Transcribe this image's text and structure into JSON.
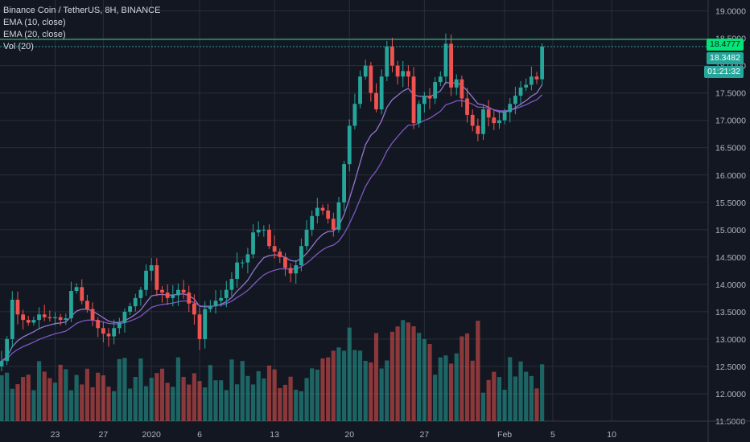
{
  "legend": {
    "symbol": "Binance Coin / TetherUS, 8H, BINANCE",
    "ema10": "EMA (10, close)",
    "ema20": "EMA (20, close)",
    "vol": "Vol (20)"
  },
  "price_badges": {
    "high": "18.4777",
    "last": "18.3482",
    "countdown": "01:21:32"
  },
  "colors": {
    "background": "#131722",
    "up": "#26a69a",
    "down": "#ef5350",
    "ema": "#7e57c2",
    "grid": "#2a2e39",
    "axis_text": "#b2b5be",
    "high_line": "#00e676"
  },
  "chart_data": {
    "type": "candlestick",
    "symbol": "BNBUSDT",
    "interval": "8H",
    "y_ticks": [
      "19.0000",
      "18.5000",
      "18.0000",
      "17.5000",
      "17.0000",
      "16.5000",
      "16.0000",
      "15.5000",
      "15.0000",
      "14.5000",
      "14.0000",
      "13.5000",
      "13.0000",
      "12.5000",
      "12.0000",
      "11.5000"
    ],
    "y_values": [
      19.0,
      18.5,
      18.0,
      17.5,
      17.0,
      16.5,
      16.0,
      15.5,
      15.0,
      14.5,
      14.0,
      13.5,
      13.0,
      12.5,
      12.0,
      11.5
    ],
    "y_range": [
      11.5,
      19.2
    ],
    "x_ticks": [
      "23",
      "27",
      "2020",
      "6",
      "13",
      "20",
      "27",
      "Feb",
      "5",
      "10"
    ],
    "x_tick_index": [
      10,
      19,
      28,
      37,
      51,
      65,
      79,
      94,
      103,
      114
    ],
    "closes": [
      12.6,
      13.0,
      13.72,
      13.45,
      13.35,
      13.3,
      13.35,
      13.45,
      13.4,
      13.38,
      13.4,
      13.35,
      13.38,
      13.88,
      13.95,
      13.7,
      13.55,
      13.35,
      13.2,
      13.1,
      13.05,
      13.2,
      13.3,
      13.5,
      13.6,
      13.75,
      13.9,
      14.25,
      14.35,
      13.9,
      13.85,
      13.75,
      13.8,
      13.9,
      13.85,
      13.65,
      13.45,
      13.0,
      13.55,
      13.6,
      13.7,
      13.75,
      13.9,
      14.1,
      14.4,
      14.4,
      14.55,
      14.95,
      15.0,
      15.0,
      14.7,
      14.6,
      14.5,
      14.3,
      14.2,
      14.35,
      14.7,
      15.0,
      15.25,
      15.4,
      15.35,
      15.2,
      15.0,
      15.5,
      16.2,
      16.9,
      17.3,
      17.8,
      18.0,
      17.5,
      17.2,
      17.8,
      18.35,
      18.0,
      17.8,
      17.9,
      17.8,
      16.95,
      17.3,
      17.45,
      17.4,
      17.7,
      17.8,
      18.4,
      17.6,
      17.75,
      17.4,
      17.1,
      16.9,
      16.75,
      17.2,
      17.05,
      16.95,
      17.0,
      17.15,
      17.3,
      17.45,
      17.6,
      17.65,
      17.8,
      17.75,
      18.35
    ],
    "opens_note": "",
    "volume_scale": [
      0,
      1
    ]
  }
}
